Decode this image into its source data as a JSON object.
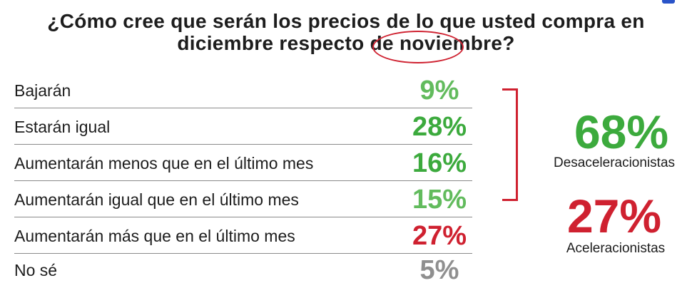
{
  "title": "¿Cómo cree que serán los precios de lo que usted compra en diciembre respecto de noviembre?",
  "colors": {
    "green": "#3caa3d",
    "light_green": "#62bb5d",
    "red": "#cf2130",
    "gray": "#8f8f8f",
    "text": "#1d1d1d"
  },
  "chart_data": {
    "type": "table",
    "title": "¿Cómo cree que serán los precios de lo que usted compra en diciembre respecto de noviembre?",
    "categories": [
      "Bajarán",
      "Estarán igual",
      "Aumentarán menos que en el último mes",
      "Aumentarán igual que en el último mes",
      "Aumentarán más que en el último mes",
      "No sé"
    ],
    "values": [
      9,
      28,
      16,
      15,
      27,
      5
    ],
    "value_labels": [
      "9%",
      "28%",
      "16%",
      "15%",
      "27%",
      "5%"
    ],
    "value_colors": [
      "#62bb5d",
      "#3caa3d",
      "#3caa3d",
      "#62bb5d",
      "#cf2130",
      "#8f8f8f"
    ],
    "highlighted_category": "Estarán igual",
    "groups": [
      {
        "label": "Desaceleracionistas",
        "value": 68,
        "value_label": "68%",
        "color": "#3caa3d"
      },
      {
        "label": "Aceleracionistas",
        "value": 27,
        "value_label": "27%",
        "color": "#cf2130"
      }
    ]
  }
}
